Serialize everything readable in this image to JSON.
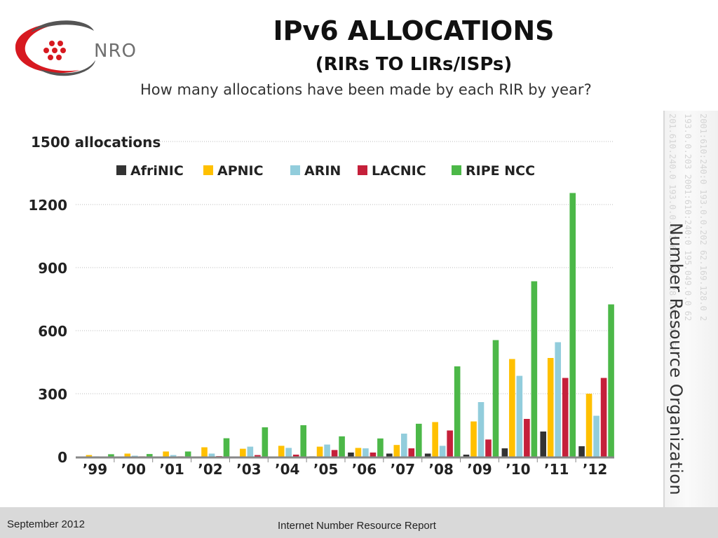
{
  "header": {
    "logo_text": "NRO",
    "title": "IPv6 ALLOCATIONS",
    "subtitle": "(RIRs TO LIRs/ISPs)",
    "question": "How many allocations have been made by each RIR by year?"
  },
  "side": {
    "label": "Number Resource Organization",
    "decoration": [
      "201.610.240.0 193.0.0.202 62.169.128 195.049.52",
      "193.0.0.203 2001:610:240:0 195.049.0.0 62",
      "2001:610:240:0 193.0.0.202 62.169.128.0 2"
    ]
  },
  "footer": {
    "date": "September 2012",
    "report": "Internet Number Resource Report"
  },
  "chart_data": {
    "type": "bar",
    "title": "",
    "ylabel": "",
    "ylabel_top": "1500 allocations",
    "ylim": [
      0,
      1500
    ],
    "yticks": [
      0,
      300,
      600,
      900,
      1200
    ],
    "grid": true,
    "legend_position": "top",
    "categories": [
      "’99",
      "’00",
      "’01",
      "’02",
      "’03",
      "’04",
      "’05",
      "’06",
      "’07",
      "’08",
      "’09",
      "’10",
      "’11",
      "’12"
    ],
    "series": [
      {
        "name": "AfriNIC",
        "color": "#333333",
        "values": [
          0,
          0,
          0,
          1,
          1,
          1,
          2,
          20,
          15,
          15,
          10,
          40,
          120,
          50
        ]
      },
      {
        "name": "APNIC",
        "color": "#ffc000",
        "values": [
          8,
          15,
          25,
          45,
          38,
          52,
          48,
          42,
          56,
          165,
          168,
          465,
          470,
          300
        ]
      },
      {
        "name": "ARIN",
        "color": "#92cddc",
        "values": [
          2,
          5,
          8,
          15,
          48,
          42,
          58,
          40,
          110,
          52,
          260,
          385,
          545,
          195
        ]
      },
      {
        "name": "LACNIC",
        "color": "#c5203a",
        "values": [
          1,
          2,
          2,
          3,
          8,
          10,
          32,
          20,
          40,
          125,
          82,
          180,
          375,
          375
        ]
      },
      {
        "name": "RIPE NCC",
        "color": "#4cb848",
        "values": [
          12,
          13,
          25,
          88,
          140,
          150,
          97,
          87,
          157,
          430,
          555,
          835,
          1255,
          725
        ]
      }
    ]
  }
}
